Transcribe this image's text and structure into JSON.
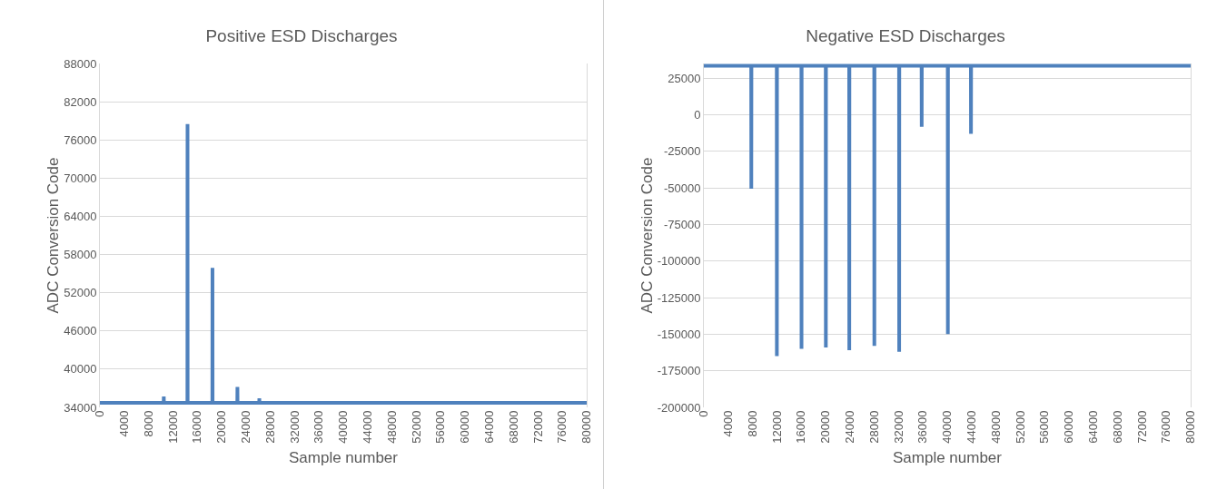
{
  "chart_data": [
    {
      "type": "line",
      "title": "Positive ESD Discharges",
      "xlabel": "Sample number",
      "ylabel": "ADC Conversion Code",
      "xlim": [
        0,
        80000
      ],
      "xticks": [
        0,
        4000,
        8000,
        12000,
        16000,
        20000,
        24000,
        28000,
        32000,
        36000,
        40000,
        44000,
        48000,
        52000,
        56000,
        60000,
        64000,
        68000,
        72000,
        76000,
        80000
      ],
      "ylim": [
        34000,
        88000
      ],
      "yticks": [
        34000,
        40000,
        46000,
        52000,
        58000,
        64000,
        70000,
        76000,
        82000,
        88000
      ],
      "grid": "y",
      "series": [
        {
          "color": "#4f81bd",
          "x": [
            0,
            10480,
            10500,
            10520,
            14380,
            14400,
            14420,
            18480,
            18500,
            18520,
            22580,
            22600,
            22620,
            26180,
            26200,
            26220,
            80000
          ],
          "values": [
            34700,
            34700,
            35700,
            34700,
            34700,
            78500,
            34700,
            34700,
            55900,
            34700,
            34700,
            37200,
            34700,
            34700,
            35400,
            34700,
            34700
          ]
        }
      ]
    },
    {
      "type": "line",
      "title": "Negative ESD Discharges",
      "xlabel": "Sample number",
      "ylabel": "ADC Conversion Code",
      "xlim": [
        0,
        80000
      ],
      "xticks": [
        0,
        4000,
        8000,
        12000,
        16000,
        20000,
        24000,
        28000,
        32000,
        36000,
        40000,
        44000,
        48000,
        52000,
        56000,
        60000,
        64000,
        68000,
        72000,
        76000,
        80000
      ],
      "ylim": [
        -200000,
        35000
      ],
      "yticks": [
        -200000,
        -175000,
        -150000,
        -125000,
        -100000,
        -75000,
        -50000,
        -25000,
        0,
        25000
      ],
      "grid": "y",
      "series": [
        {
          "color": "#4f81bd",
          "x": [
            0,
            7780,
            7800,
            7820,
            11980,
            12000,
            12020,
            16030,
            16050,
            16070,
            20030,
            20050,
            20070,
            23880,
            23900,
            23920,
            28000,
            28020,
            28040,
            32080,
            32100,
            32120,
            35780,
            35800,
            35820,
            40080,
            40100,
            40120,
            43880,
            43900,
            43920,
            80000
          ],
          "values": [
            33500,
            33500,
            -50500,
            33500,
            33500,
            -165000,
            33500,
            33500,
            -160000,
            33500,
            33500,
            -159000,
            33500,
            33500,
            -161000,
            33500,
            33500,
            -158000,
            33500,
            33500,
            -162000,
            33500,
            33500,
            -8200,
            33500,
            33500,
            -150000,
            33500,
            33500,
            -13000,
            33500,
            33500
          ]
        }
      ]
    }
  ]
}
